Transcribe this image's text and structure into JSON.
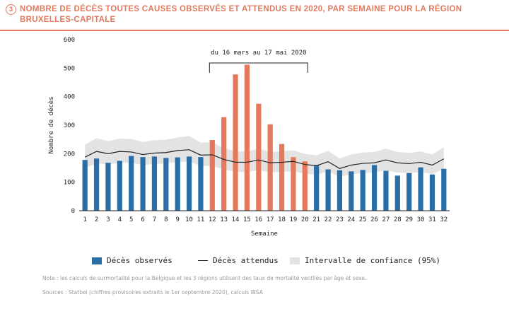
{
  "figure": {
    "number": "3",
    "title": "NOMBRE DE DÉCÈS TOUTES CAUSES OBSERVÉS ET ATTENDUS EN 2020, PAR SEMAINE POUR LA RÉGION BRUXELLES-CAPITALE"
  },
  "colors": {
    "accent": "#e07a5f",
    "observed": "#2a6ea8",
    "highlight": "#e4795d",
    "band": "#e3e3e3",
    "expected_line": "#222222"
  },
  "annotation": {
    "label": "du 16 mars au 17 mai 2020",
    "from_week": 12,
    "to_week": 20
  },
  "legend": {
    "observed": "Décès observés",
    "expected": "Décès attendus",
    "interval": "Intervalle de confiance (95%)"
  },
  "notes": {
    "note": "Note : les calculs de surmortalité pour la Belgique et les 3 régions utilisent des taux de mortalité ventilés par âge et sexe.",
    "source": "Sources : Statbel (chiffres provisoires extraits le 1er septembre 2020), calculs IBSA"
  },
  "chart_data": {
    "type": "bar",
    "xlabel": "Semaine",
    "ylabel": "Nombre de décès",
    "ylim": [
      0,
      600
    ],
    "yticks": [
      0,
      100,
      200,
      300,
      400,
      500,
      600
    ],
    "categories": [
      "1",
      "2",
      "3",
      "4",
      "5",
      "6",
      "7",
      "8",
      "9",
      "10",
      "11",
      "12",
      "13",
      "14",
      "15",
      "16",
      "17",
      "18",
      "19",
      "20",
      "21",
      "22",
      "23",
      "24",
      "25",
      "26",
      "27",
      "28",
      "29",
      "30",
      "31",
      "32"
    ],
    "series": [
      {
        "name": "Décès observés",
        "values": [
          178,
          183,
          168,
          175,
          192,
          188,
          190,
          185,
          187,
          190,
          188,
          248,
          328,
          478,
          512,
          375,
          303,
          234,
          188,
          173,
          160,
          145,
          142,
          138,
          143,
          160,
          140,
          123,
          132,
          152,
          127,
          147
        ]
      },
      {
        "name": "Décès attendus",
        "values": [
          188,
          208,
          200,
          208,
          206,
          197,
          202,
          204,
          211,
          214,
          195,
          196,
          180,
          170,
          170,
          178,
          168,
          170,
          173,
          162,
          158,
          172,
          148,
          160,
          166,
          168,
          178,
          168,
          165,
          170,
          160,
          182
        ]
      },
      {
        "name": "Intervalle de confiance (95%)",
        "lower": [
          150,
          166,
          162,
          168,
          168,
          160,
          164,
          165,
          171,
          172,
          157,
          157,
          144,
          136,
          136,
          142,
          134,
          136,
          138,
          130,
          126,
          138,
          118,
          128,
          132,
          134,
          142,
          134,
          132,
          136,
          128,
          146
        ],
        "upper": [
          232,
          254,
          244,
          253,
          251,
          241,
          247,
          249,
          257,
          262,
          239,
          240,
          220,
          208,
          208,
          218,
          206,
          208,
          212,
          199,
          194,
          210,
          183,
          197,
          204,
          206,
          218,
          206,
          203,
          208,
          197,
          223
        ]
      }
    ],
    "highlight_weeks": [
      12,
      13,
      14,
      15,
      16,
      17,
      18,
      19,
      20
    ],
    "legend_position": "bottom",
    "grid": false
  }
}
